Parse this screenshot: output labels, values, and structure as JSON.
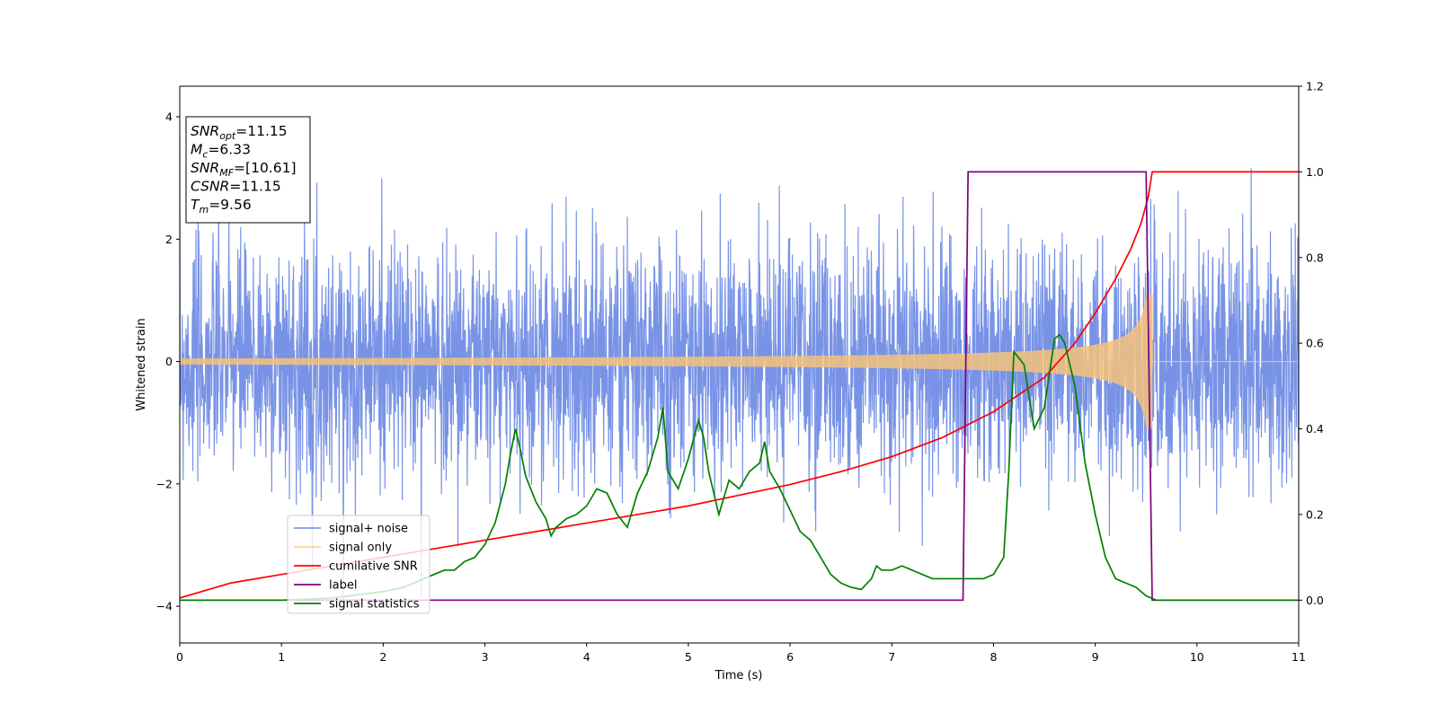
{
  "chart_data": {
    "type": "line",
    "xlabel": "Time (s)",
    "ylabel": "Whitened strain",
    "xlim": [
      0,
      11
    ],
    "ylim_left": [
      -4.6,
      4.5
    ],
    "ylim_right": [
      -0.1,
      1.2
    ],
    "x_ticks": [
      0,
      1,
      2,
      3,
      4,
      5,
      6,
      7,
      8,
      9,
      10,
      11
    ],
    "y_ticks_left": [
      -4,
      -2,
      0,
      2,
      4
    ],
    "y_ticks_right": [
      0.0,
      0.2,
      0.4,
      0.6,
      0.8,
      1.0,
      1.2
    ],
    "grid": false,
    "legend_placement": "lower-left",
    "stats_box": [
      {
        "base": "SNR",
        "sub": "opt",
        "value": "=11.15"
      },
      {
        "base": "M",
        "sub": "c",
        "value": "=6.33"
      },
      {
        "base": "SNR",
        "sub": "MF",
        "value": "=[10.61]"
      },
      {
        "base": "CSNR",
        "sub": "",
        "value": "=11.15"
      },
      {
        "base": "T",
        "sub": "m",
        "value": "=9.56"
      }
    ],
    "series": [
      {
        "name": "signal+ noise",
        "axis": "left",
        "color": "#6c8ae4",
        "description_values": {
          "noise_std_approx": 0.95,
          "x_range": [
            0,
            11
          ]
        }
      },
      {
        "name": "signal only",
        "axis": "left",
        "color": "#f5c27a",
        "chirp": {
          "end_time": 9.56,
          "start_amplitude": 0.05,
          "peak_amplitude": 1.1
        }
      },
      {
        "name": "cumilative SNR",
        "axis": "right",
        "color": "#ff0000",
        "x": [
          0,
          0.5,
          1,
          1.5,
          2,
          2.5,
          3,
          3.5,
          4,
          4.5,
          5,
          5.5,
          6,
          6.5,
          7,
          7.5,
          8,
          8.5,
          8.8,
          9.0,
          9.2,
          9.35,
          9.45,
          9.52,
          9.56,
          11
        ],
        "y": [
          0.005,
          0.04,
          0.06,
          0.08,
          0.1,
          0.12,
          0.14,
          0.16,
          0.18,
          0.2,
          0.22,
          0.245,
          0.27,
          0.3,
          0.335,
          0.38,
          0.44,
          0.52,
          0.6,
          0.67,
          0.75,
          0.82,
          0.88,
          0.94,
          1.0,
          1.0
        ]
      },
      {
        "name": "label",
        "axis": "right",
        "color": "#800080",
        "x": [
          0,
          7.7,
          7.75,
          9.5,
          9.56,
          11
        ],
        "y": [
          0,
          0,
          1,
          1,
          0,
          0
        ]
      },
      {
        "name": "signal statistics",
        "axis": "right",
        "color": "#008000",
        "x": [
          0,
          0.5,
          1,
          1.5,
          2,
          2.2,
          2.4,
          2.5,
          2.6,
          2.7,
          2.8,
          2.9,
          3.0,
          3.1,
          3.2,
          3.25,
          3.3,
          3.35,
          3.4,
          3.5,
          3.6,
          3.65,
          3.7,
          3.8,
          3.9,
          4.0,
          4.1,
          4.2,
          4.3,
          4.4,
          4.5,
          4.6,
          4.7,
          4.75,
          4.8,
          4.9,
          5.0,
          5.1,
          5.15,
          5.2,
          5.3,
          5.4,
          5.5,
          5.6,
          5.7,
          5.75,
          5.8,
          5.9,
          6.0,
          6.1,
          6.2,
          6.3,
          6.4,
          6.5,
          6.6,
          6.7,
          6.8,
          6.85,
          6.9,
          7.0,
          7.1,
          7.2,
          7.3,
          7.4,
          7.5,
          7.6,
          7.7,
          7.8,
          7.9,
          8.0,
          8.1,
          8.15,
          8.2,
          8.3,
          8.4,
          8.5,
          8.6,
          8.65,
          8.7,
          8.8,
          8.9,
          9.0,
          9.1,
          9.2,
          9.3,
          9.4,
          9.5,
          9.6,
          10.0,
          11
        ],
        "y": [
          0.0,
          0.0,
          0.0,
          0.005,
          0.02,
          0.03,
          0.05,
          0.06,
          0.07,
          0.07,
          0.09,
          0.1,
          0.13,
          0.18,
          0.27,
          0.34,
          0.4,
          0.35,
          0.29,
          0.23,
          0.19,
          0.15,
          0.17,
          0.19,
          0.2,
          0.22,
          0.26,
          0.25,
          0.2,
          0.17,
          0.25,
          0.3,
          0.38,
          0.45,
          0.3,
          0.26,
          0.33,
          0.42,
          0.38,
          0.3,
          0.2,
          0.28,
          0.26,
          0.3,
          0.32,
          0.37,
          0.3,
          0.26,
          0.21,
          0.16,
          0.14,
          0.1,
          0.06,
          0.04,
          0.03,
          0.025,
          0.05,
          0.08,
          0.07,
          0.07,
          0.08,
          0.07,
          0.06,
          0.05,
          0.05,
          0.05,
          0.05,
          0.05,
          0.05,
          0.06,
          0.1,
          0.3,
          0.58,
          0.55,
          0.4,
          0.45,
          0.61,
          0.62,
          0.6,
          0.5,
          0.32,
          0.2,
          0.1,
          0.05,
          0.04,
          0.03,
          0.01,
          0.0,
          0.0,
          0.0
        ]
      }
    ]
  }
}
